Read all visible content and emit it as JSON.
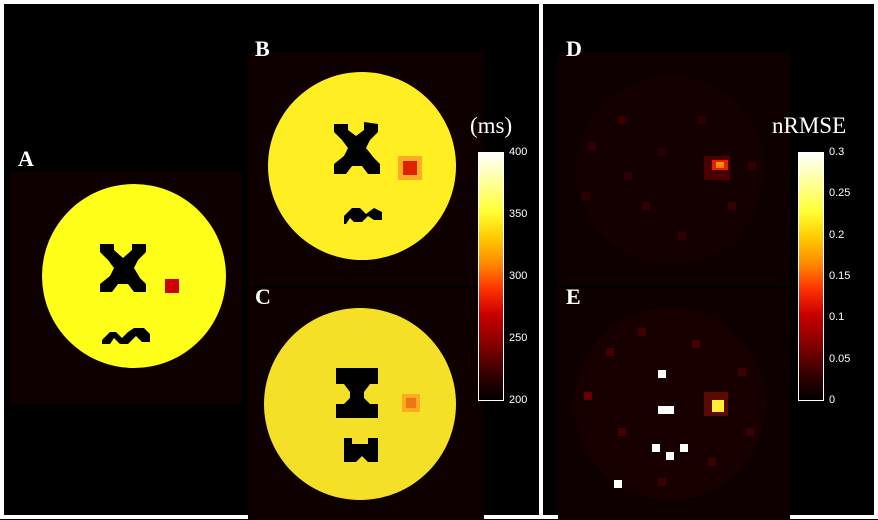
{
  "labels": {
    "a": "A",
    "b": "B",
    "c": "C",
    "d": "D",
    "e": "E"
  },
  "colorbar_t2": {
    "unit": "(ms)",
    "ticks": [
      "400",
      "350",
      "300",
      "250",
      "200"
    ]
  },
  "colorbar_err": {
    "unit": "nRMSE",
    "ticks": [
      "0.3",
      "0.25",
      "0.2",
      "0.15",
      "0.1",
      "0.05",
      "0"
    ]
  },
  "colors": {
    "phantom": "#ffff1a",
    "lesion": "#cc0000",
    "hotspot": "#ff5500",
    "background": "#0f0000",
    "frame": "#ffffff"
  }
}
